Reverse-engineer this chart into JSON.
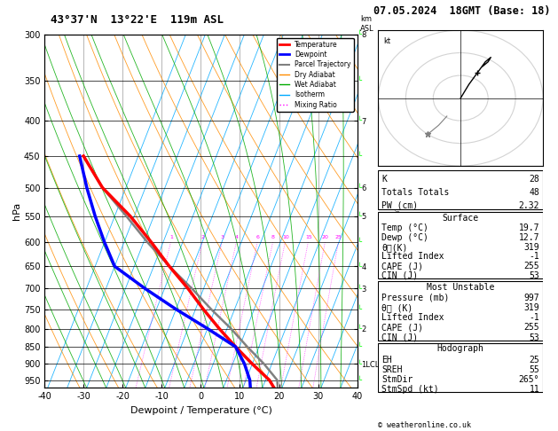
{
  "title_left": "43°37'N  13°22'E  119m ASL",
  "title_right": "07.05.2024  18GMT (Base: 18)",
  "xlabel": "Dewpoint / Temperature (°C)",
  "ylabel_left": "hPa",
  "pressure_ticks": [
    300,
    350,
    400,
    450,
    500,
    550,
    600,
    650,
    700,
    750,
    800,
    850,
    900,
    950
  ],
  "mixing_ratio_values": [
    1,
    2,
    3,
    4,
    6,
    8,
    10,
    15,
    20,
    25
  ],
  "temperature_profile": {
    "temps": [
      19.7,
      16.0,
      10.0,
      4.0,
      -2.0,
      -8.0,
      -14.0,
      -21.0,
      -28.0,
      -36.0,
      -46.0,
      -54.0
    ],
    "pressures": [
      997,
      950,
      900,
      850,
      800,
      750,
      700,
      650,
      600,
      550,
      500,
      450
    ]
  },
  "dewpoint_profile": {
    "temps": [
      12.7,
      11.0,
      8.0,
      4.0,
      -5.0,
      -15.0,
      -25.0,
      -35.0,
      -40.0,
      -45.0,
      -50.0,
      -55.0
    ],
    "pressures": [
      997,
      950,
      900,
      850,
      800,
      750,
      700,
      650,
      600,
      550,
      500,
      450
    ]
  },
  "parcel_trajectory": {
    "temps": [
      19.7,
      18.0,
      13.0,
      7.0,
      1.0,
      -6.0,
      -13.0,
      -21.0,
      -29.0,
      -37.0,
      -46.0,
      -54.0
    ],
    "pressures": [
      997,
      950,
      900,
      850,
      800,
      750,
      700,
      650,
      600,
      550,
      500,
      450
    ]
  },
  "color_temp": "#ff0000",
  "color_dewp": "#0000ff",
  "color_parcel": "#808080",
  "color_dry_adiabat": "#ff8c00",
  "color_wet_adiabat": "#00aa00",
  "color_isotherm": "#00aaff",
  "color_mixing": "#ff00ff",
  "stats": {
    "K": 28,
    "Totals_Totals": 48,
    "PW_cm": 2.32,
    "Surface_Temp": 19.7,
    "Surface_Dewp": 12.7,
    "Surface_ThetaE": 319,
    "Surface_LI": -1,
    "Surface_CAPE": 255,
    "Surface_CIN": 53,
    "MU_Pressure": 997,
    "MU_ThetaE": 319,
    "MU_LI": -1,
    "MU_CAPE": 255,
    "MU_CIN": 53,
    "Hodo_EH": 25,
    "Hodo_SREH": 55,
    "Hodo_StmDir": 265,
    "Hodo_StmSpd": 11
  },
  "km_ticks_p": [
    300,
    400,
    500,
    550,
    650,
    700,
    800,
    900
  ],
  "km_ticks_labels": [
    "8",
    "7",
    "6",
    "5",
    "4",
    "3",
    "2",
    "1LCL"
  ]
}
